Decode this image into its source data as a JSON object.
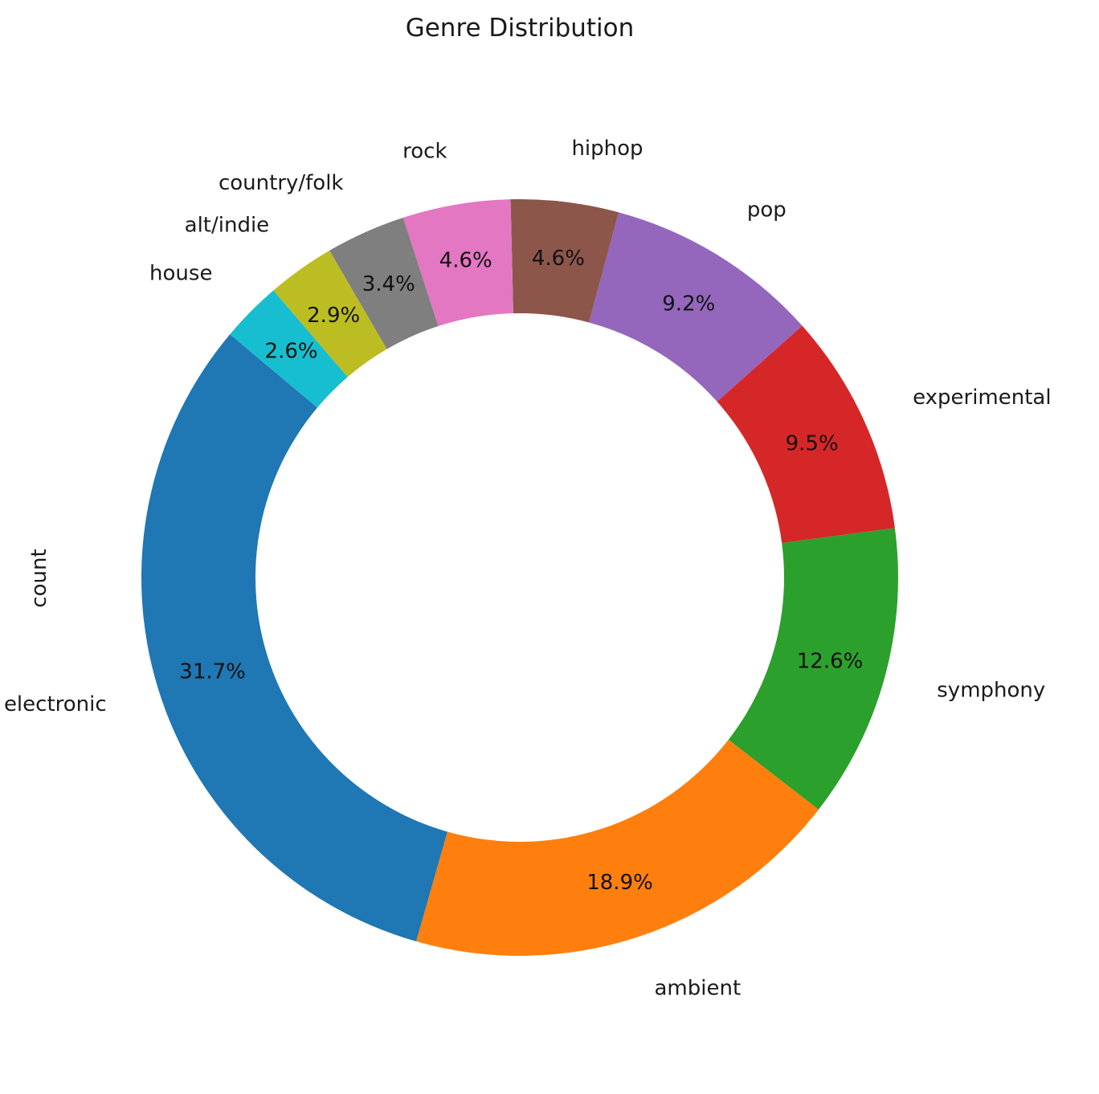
{
  "chart_data": {
    "type": "pie",
    "title": "Genre Distribution",
    "ylabel": "count",
    "donut": true,
    "start_angle_deg": 140,
    "direction": "counterclockwise",
    "slices": [
      {
        "label": "electronic",
        "pct_label": "31.7%",
        "value": 31.7,
        "color": "#1f77b4"
      },
      {
        "label": "ambient",
        "pct_label": "18.9%",
        "value": 18.9,
        "color": "#ff7f0e"
      },
      {
        "label": "symphony",
        "pct_label": "12.6%",
        "value": 12.6,
        "color": "#2ca02c"
      },
      {
        "label": "experimental",
        "pct_label": "9.5%",
        "value": 9.5,
        "color": "#d62728"
      },
      {
        "label": "pop",
        "pct_label": "9.2%",
        "value": 9.2,
        "color": "#9467bd"
      },
      {
        "label": "hiphop",
        "pct_label": "4.6%",
        "value": 4.6,
        "color": "#8c564b"
      },
      {
        "label": "rock",
        "pct_label": "4.6%",
        "value": 4.6,
        "color": "#e377c2"
      },
      {
        "label": "country/folk",
        "pct_label": "3.4%",
        "value": 3.4,
        "color": "#7f7f7f"
      },
      {
        "label": "alt/indie",
        "pct_label": "2.9%",
        "value": 2.9,
        "color": "#bcbd22"
      },
      {
        "label": "house",
        "pct_label": "2.6%",
        "value": 2.6,
        "color": "#17becf"
      }
    ]
  }
}
